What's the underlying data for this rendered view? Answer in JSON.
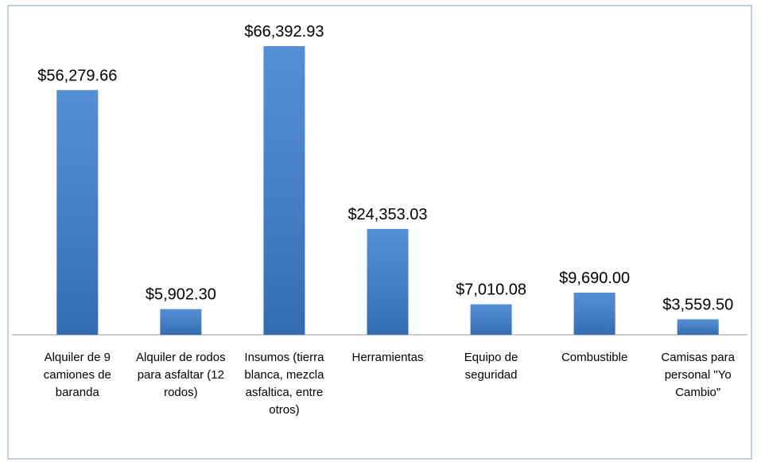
{
  "chart_data": {
    "type": "bar",
    "categories": [
      "Alquiler de 9 camiones de baranda",
      "Alquiler de rodos para asfaltar (12 rodos)",
      "Insumos (tierra blanca, mezcla asfaltica, entre otros)",
      "Herramientas",
      "Equipo de seguridad",
      "Combustible",
      "Camisas para personal \"Yo Cambio\""
    ],
    "values": [
      56279.66,
      5902.3,
      66392.93,
      24353.03,
      7010.08,
      9690.0,
      3559.5
    ],
    "value_labels": [
      "$56,279.66",
      "$5,902.30",
      "$66,392.93",
      "$24,353.03",
      "$7,010.08",
      "$9,690.00",
      "$3,559.50"
    ],
    "color": "#3d7fd0"
  }
}
